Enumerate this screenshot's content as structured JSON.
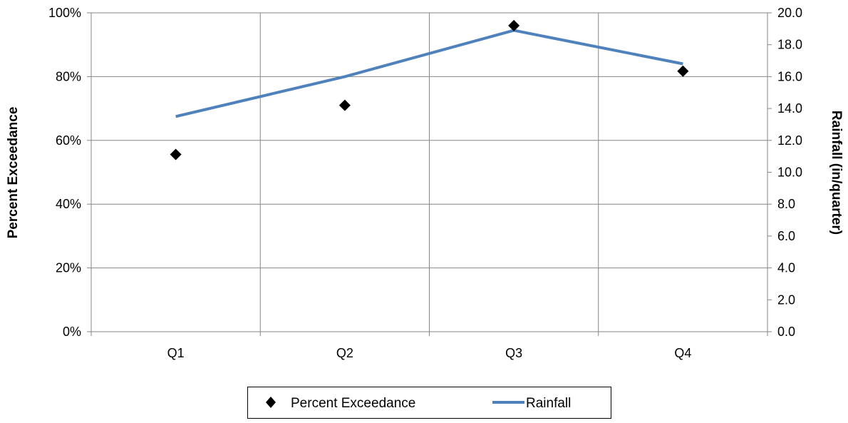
{
  "chart_data": {
    "type": "line",
    "categories": [
      "Q1",
      "Q2",
      "Q3",
      "Q4"
    ],
    "series": [
      {
        "name": "Percent Exceedance",
        "axis": "left",
        "style": "scatter",
        "marker": "diamond",
        "color": "#000000",
        "values": [
          55.6,
          71.0,
          96.0,
          81.7
        ]
      },
      {
        "name": "Rainfall",
        "axis": "right",
        "style": "line",
        "color": "#4F81BD",
        "values": [
          13.5,
          16.0,
          18.9,
          16.8
        ]
      }
    ],
    "y_left": {
      "label": "Percent Exceedance",
      "ylim": [
        0,
        100
      ],
      "ticks": [
        "0%",
        "20%",
        "40%",
        "60%",
        "80%",
        "100%"
      ]
    },
    "y_right": {
      "label": "Rainfall (in/quarter)",
      "ylim": [
        0,
        20
      ],
      "ticks": [
        "0.0",
        "2.0",
        "4.0",
        "6.0",
        "8.0",
        "10.0",
        "12.0",
        "14.0",
        "16.0",
        "18.0",
        "20.0"
      ]
    },
    "grid": true,
    "legend_position": "bottom"
  }
}
